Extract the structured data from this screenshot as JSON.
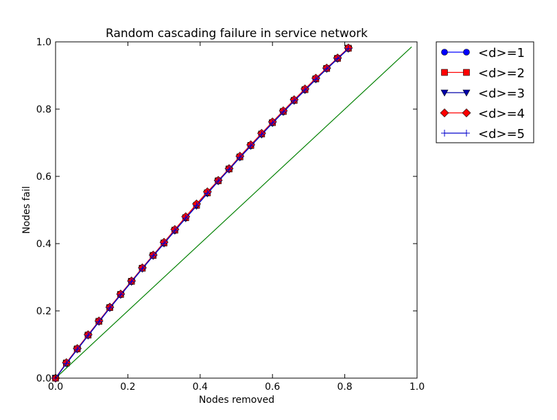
{
  "chart_data": {
    "type": "line",
    "title": "Random cascading failure in service network",
    "xlabel": "Nodes removed",
    "ylabel": "Nodes fail",
    "xlim": [
      0.0,
      1.0
    ],
    "ylim": [
      0.0,
      1.0
    ],
    "xticks": [
      "0.0",
      "0.2",
      "0.4",
      "0.6",
      "0.8",
      "1.0"
    ],
    "yticks": [
      "0.0",
      "0.2",
      "0.4",
      "0.6",
      "0.8",
      "1.0"
    ],
    "grid": false,
    "legend_position": "outside-upper-right",
    "x": [
      0.0,
      0.03,
      0.06,
      0.09,
      0.12,
      0.15,
      0.18,
      0.21,
      0.24,
      0.27,
      0.3,
      0.33,
      0.36,
      0.39,
      0.42,
      0.45,
      0.48,
      0.51,
      0.54,
      0.57,
      0.6,
      0.63,
      0.66,
      0.69,
      0.72,
      0.75,
      0.78,
      0.81
    ],
    "series": [
      {
        "name": "<d>=1",
        "color": "#0000ff",
        "marker": "circle",
        "values": [
          0.0,
          0.044,
          0.086,
          0.127,
          0.168,
          0.209,
          0.248,
          0.287,
          0.326,
          0.364,
          0.401,
          0.439,
          0.476,
          0.513,
          0.55,
          0.586,
          0.621,
          0.657,
          0.691,
          0.725,
          0.759,
          0.792,
          0.825,
          0.857,
          0.889,
          0.92,
          0.95,
          0.98
        ]
      },
      {
        "name": "<d>=2",
        "color": "#ff0000",
        "marker": "square",
        "values": [
          0.0,
          0.045,
          0.087,
          0.128,
          0.169,
          0.21,
          0.249,
          0.288,
          0.327,
          0.365,
          0.402,
          0.44,
          0.477,
          0.514,
          0.551,
          0.587,
          0.622,
          0.658,
          0.692,
          0.726,
          0.76,
          0.793,
          0.826,
          0.858,
          0.89,
          0.921,
          0.951,
          0.981
        ]
      },
      {
        "name": "<d>=3",
        "color": "#0000aa",
        "marker": "triangle-down",
        "values": [
          0.0,
          0.043,
          0.085,
          0.126,
          0.167,
          0.208,
          0.247,
          0.286,
          0.325,
          0.363,
          0.4,
          0.438,
          0.475,
          0.512,
          0.549,
          0.585,
          0.62,
          0.656,
          0.69,
          0.724,
          0.758,
          0.791,
          0.824,
          0.856,
          0.888,
          0.919,
          0.949,
          0.979
        ]
      },
      {
        "name": "<d>=4",
        "color": "#ff0000",
        "marker": "diamond",
        "values": [
          0.0,
          0.046,
          0.088,
          0.129,
          0.17,
          0.211,
          0.25,
          0.289,
          0.328,
          0.366,
          0.404,
          0.442,
          0.48,
          0.518,
          0.554,
          0.588,
          0.623,
          0.66,
          0.694,
          0.728,
          0.762,
          0.795,
          0.828,
          0.86,
          0.892,
          0.922,
          0.952,
          0.982
        ]
      },
      {
        "name": "<d>=5",
        "color": "#0000cc",
        "marker": "plus",
        "values": [
          0.0,
          0.044,
          0.086,
          0.127,
          0.168,
          0.209,
          0.248,
          0.287,
          0.326,
          0.364,
          0.401,
          0.439,
          0.476,
          0.513,
          0.55,
          0.586,
          0.621,
          0.657,
          0.691,
          0.725,
          0.759,
          0.792,
          0.825,
          0.857,
          0.889,
          0.92,
          0.95,
          0.98
        ]
      }
    ],
    "reference_line": {
      "color": "#008000",
      "x": [
        0.0,
        0.985
      ],
      "y": [
        0.0,
        0.985
      ]
    }
  }
}
